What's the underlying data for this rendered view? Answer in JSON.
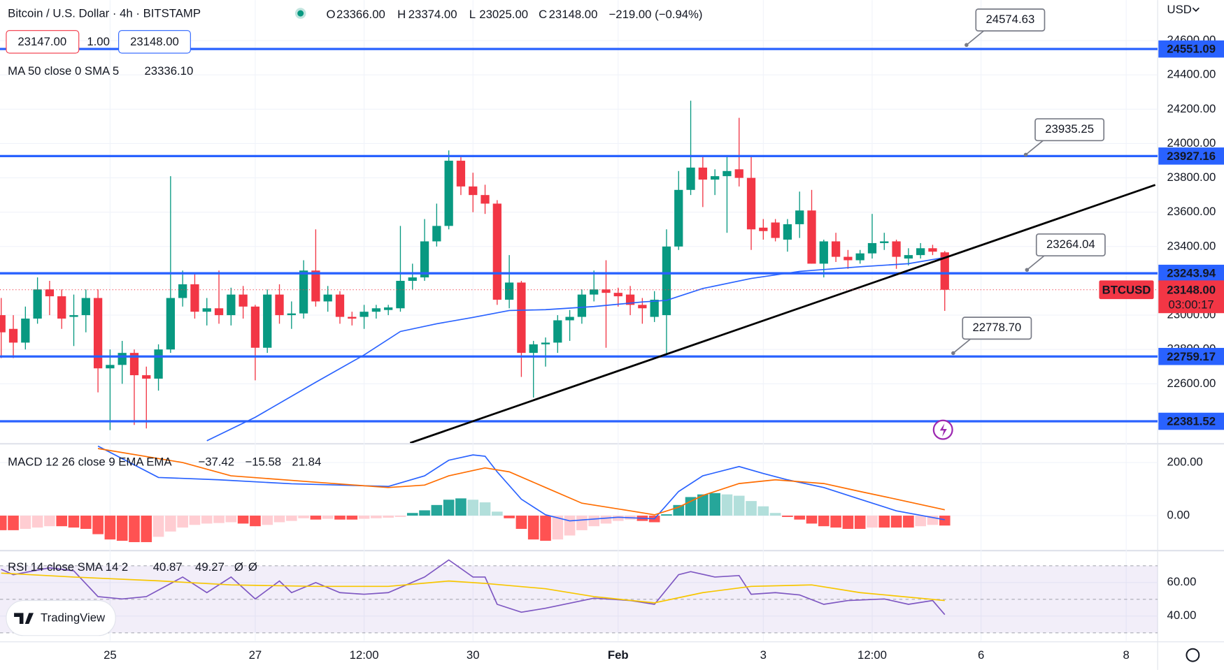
{
  "header": {
    "symbol": "Bitcoin / U.S. Dollar · 4h · BITSTAMP",
    "ohlc": [
      {
        "label": "O",
        "value": "23366.00"
      },
      {
        "label": "H",
        "value": "23374.00"
      },
      {
        "label": "L",
        "value": "23025.00"
      },
      {
        "label": "C",
        "value": "23148.00"
      }
    ],
    "change": "−219.00 (−0.94%)",
    "bid": "23147.00",
    "spread": "1.00",
    "ask": "23148.00",
    "currency": "USD",
    "brand": "TradingView"
  },
  "chart_data": [
    {
      "type": "candlestick",
      "up_color": "#089981",
      "down_color": "#f23645",
      "grid": true,
      "open": [
        23000,
        22920,
        22840,
        22980,
        23150,
        23110,
        22990,
        23000,
        23100,
        22690,
        22710,
        22780,
        22650,
        22630,
        22800,
        23100,
        23180,
        23020,
        23040,
        23000,
        23120,
        23050,
        22810,
        23120,
        23000,
        23010,
        23260,
        23080,
        23120,
        22990,
        22990,
        23020,
        23030,
        23040,
        23200,
        23220,
        23430,
        23520,
        23900,
        23750,
        23700,
        23650,
        23090,
        23190,
        22780,
        22830,
        22840,
        22970,
        22990,
        23120,
        23150,
        23130,
        23120,
        23060,
        22990,
        23000,
        23400,
        23730,
        23860,
        23790,
        23810,
        23850,
        23800,
        23510,
        23540,
        23440,
        23530,
        23610,
        23300,
        23430,
        23340,
        23320,
        23360,
        23420,
        23430,
        23330,
        23350,
        23390,
        23366
      ],
      "high": [
        23100,
        23000,
        23050,
        23220,
        23200,
        23150,
        23120,
        23150,
        23150,
        22800,
        22850,
        22800,
        22700,
        22830,
        23810,
        23260,
        23250,
        23100,
        23260,
        23160,
        23170,
        23060,
        23150,
        23180,
        23080,
        23320,
        23500,
        23170,
        23140,
        23020,
        23060,
        23060,
        23060,
        23520,
        23300,
        23560,
        23650,
        23960,
        23920,
        23830,
        23760,
        23670,
        23350,
        23200,
        22850,
        22870,
        23000,
        23030,
        23150,
        23260,
        23320,
        23160,
        23170,
        23100,
        23140,
        23500,
        23840,
        24250,
        23930,
        23850,
        23930,
        24150,
        23930,
        23560,
        23560,
        23560,
        23720,
        23730,
        23440,
        23480,
        23380,
        23380,
        23590,
        23480,
        23440,
        23390,
        23420,
        23410,
        23374
      ],
      "low": [
        22750,
        22750,
        22800,
        22950,
        23000,
        22920,
        22820,
        22900,
        22550,
        22330,
        22600,
        22360,
        22340,
        22560,
        22780,
        23050,
        22980,
        22940,
        22950,
        22940,
        22980,
        22620,
        22780,
        22950,
        22920,
        22980,
        23050,
        23020,
        22950,
        22940,
        22920,
        22980,
        23000,
        23020,
        23150,
        23200,
        23400,
        23500,
        23700,
        23600,
        23590,
        23060,
        23040,
        22640,
        22520,
        22700,
        22780,
        22850,
        22950,
        23080,
        22810,
        23050,
        23000,
        22950,
        22960,
        22770,
        23380,
        23700,
        23630,
        23700,
        23480,
        23750,
        23380,
        23440,
        23430,
        23370,
        23450,
        23300,
        23220,
        23310,
        23270,
        23300,
        23330,
        23380,
        23270,
        23290,
        23330,
        23350,
        23025
      ],
      "close": [
        22900,
        22840,
        22980,
        23150,
        23110,
        22980,
        23000,
        23100,
        22690,
        22710,
        22780,
        22650,
        22630,
        22800,
        23100,
        23180,
        23020,
        23040,
        23000,
        23120,
        23050,
        22810,
        23120,
        23000,
        23010,
        23260,
        23080,
        23120,
        22990,
        22980,
        23020,
        23040,
        23045,
        23200,
        23220,
        23430,
        23520,
        23900,
        23750,
        23700,
        23650,
        23090,
        23190,
        22780,
        22830,
        22840,
        22970,
        22990,
        23120,
        23150,
        23130,
        23110,
        23060,
        23040,
        23090,
        23400,
        23730,
        23860,
        23790,
        23810,
        23840,
        23800,
        23500,
        23490,
        23450,
        23530,
        23610,
        23300,
        23430,
        23340,
        23320,
        23360,
        23420,
        23430,
        23340,
        23350,
        23390,
        23370,
        23148
      ],
      "xlim": [
        -0.1,
        95.6
      ],
      "ylim": [
        22255,
        24836
      ],
      "xticks": [
        {
          "value": 9,
          "label": "25"
        },
        {
          "value": 21,
          "label": "27"
        },
        {
          "value": 30,
          "label": "12:00"
        },
        {
          "value": 39,
          "label": "30"
        },
        {
          "value": 51,
          "label": "Feb"
        },
        {
          "value": 63,
          "label": "3"
        },
        {
          "value": 72,
          "label": "12:00"
        },
        {
          "value": 81,
          "label": "6"
        },
        {
          "value": 93,
          "label": "8"
        }
      ],
      "yticks": [
        {
          "value": 24600,
          "label": "24600.00"
        },
        {
          "value": 24400,
          "label": "24400.00"
        },
        {
          "value": 24200,
          "label": "24200.00"
        },
        {
          "value": 24000,
          "label": "24000.00"
        },
        {
          "value": 23800,
          "label": "23800.00"
        },
        {
          "value": 23600,
          "label": "23600.00"
        },
        {
          "value": 23400,
          "label": "23400.00"
        },
        {
          "value": 23000,
          "label": "23000.00"
        },
        {
          "value": 22800,
          "label": "22800.00"
        },
        {
          "value": 22600,
          "label": "22600.00"
        }
      ],
      "series": [
        {
          "name": "MA 50 close 0 SMA 5",
          "color": "#2962ff",
          "value_label": "23336.10",
          "x": [
            17,
            21,
            26,
            30,
            33,
            36,
            39,
            42,
            45,
            49,
            53,
            55,
            58,
            62,
            66,
            71,
            75,
            78
          ],
          "values": [
            22268,
            22405,
            22609,
            22768,
            22905,
            22950,
            22987,
            23027,
            23032,
            23050,
            23077,
            23086,
            23155,
            23214,
            23255,
            23282,
            23300,
            23336.1
          ]
        }
      ],
      "level_color": "#2962ff",
      "levels": [
        {
          "value": 24551.09,
          "label": "24551.09"
        },
        {
          "value": 23927.16,
          "label": "23927.16"
        },
        {
          "value": 23243.94,
          "label": "23243.94"
        },
        {
          "value": 22759.17,
          "label": "22759.17"
        },
        {
          "value": 22381.52,
          "label": "22381.52"
        }
      ],
      "callouts": [
        {
          "x": 79.8,
          "value": 24574.63,
          "label": "24574.63"
        },
        {
          "x": 84.7,
          "value": 23935.25,
          "label": "23935.25"
        },
        {
          "x": 84.8,
          "value": 23264.04,
          "label": "23264.04"
        },
        {
          "x": 78.7,
          "value": 22778.7,
          "label": "22778.70"
        }
      ],
      "trendline": {
        "x": [
          33.8,
          95.4
        ],
        "values": [
          22255,
          23759
        ]
      },
      "last_price": {
        "value": 23148,
        "label": "23148.00",
        "symbol": "BTCUSD",
        "countdown": "03:00:17"
      }
    },
    {
      "type": "macd",
      "title": "MACD 12 26 close 9 EMA EMA",
      "ylim": [
        -129,
        268
      ],
      "yticks": [
        {
          "value": 200,
          "label": "200.00"
        },
        {
          "value": 0,
          "label": "0.00"
        }
      ],
      "hist_colors": [
        "#26a69a",
        "#b2dfdb",
        "#ff5252",
        "#ffcdd2"
      ],
      "histogram": {
        "value_label": "−37.42",
        "color": "#f23645",
        "values": [
          -55,
          -55,
          -50,
          -45,
          -40,
          -40,
          -45,
          -50,
          -70,
          -90,
          -95,
          -100,
          -100,
          -80,
          -60,
          -45,
          -35,
          -30,
          -28,
          -25,
          -30,
          -40,
          -35,
          -25,
          -20,
          -10,
          -15,
          -12,
          -15,
          -15,
          -12,
          -10,
          -8,
          -5,
          10,
          20,
          40,
          60,
          65,
          60,
          50,
          15,
          -10,
          -50,
          -90,
          -95,
          -90,
          -75,
          -55,
          -40,
          -30,
          -20,
          -15,
          -20,
          -25,
          5,
          40,
          70,
          80,
          85,
          80,
          75,
          55,
          35,
          10,
          -5,
          -15,
          -30,
          -40,
          -45,
          -50,
          -50,
          -45,
          -45,
          -45,
          -45,
          -40,
          -35,
          -37.42
        ]
      },
      "series": [
        {
          "color": "#2962ff",
          "value_label": "−15.58",
          "x": [
            8,
            13,
            18,
            24,
            32,
            35,
            37,
            39,
            40,
            41,
            43,
            45,
            47,
            51,
            54,
            56,
            58,
            61,
            63,
            65,
            68,
            71,
            74,
            78
          ],
          "values": [
            262,
            144,
            135,
            120,
            110,
            150,
            209,
            229,
            224,
            165,
            62,
            3,
            -20,
            -6,
            -12,
            91,
            150,
            185,
            159,
            135,
            106,
            62,
            18,
            -15.58
          ]
        },
        {
          "color": "#ff6d00",
          "value_label": "21.84",
          "x": [
            8,
            15,
            19,
            26,
            32,
            35,
            37,
            40,
            42,
            45,
            48,
            52,
            54,
            56,
            58,
            61,
            64,
            68,
            71,
            74,
            78
          ],
          "values": [
            253,
            200,
            150,
            126,
            106,
            115,
            150,
            180,
            165,
            106,
            47,
            18,
            3,
            32,
            76,
            121,
            135,
            121,
            91,
            62,
            21.84
          ]
        }
      ]
    },
    {
      "type": "rsi",
      "title": "RSI 14 close SMA 14 2",
      "extras": [
        "Ø",
        "Ø"
      ],
      "ylim": [
        25.1,
        78.6
      ],
      "yticks": [
        {
          "value": 60,
          "label": "60.00"
        },
        {
          "value": 40,
          "label": "40.00"
        }
      ],
      "band": [
        30,
        70
      ],
      "midline": 50,
      "band_color": "#7e57c2",
      "series": [
        {
          "color": "#7e57c2",
          "value_label": "40.87",
          "x": [
            0,
            1,
            4,
            6,
            8,
            10,
            12,
            15,
            17,
            19,
            21,
            23,
            24,
            26,
            28,
            30,
            32,
            35,
            37,
            39,
            40,
            41,
            43,
            45,
            49,
            52,
            54,
            56,
            57,
            59,
            61,
            62,
            64,
            66,
            68,
            70,
            73,
            75,
            77,
            78
          ],
          "values": [
            67.9,
            64.7,
            68.8,
            67.0,
            51.6,
            50.2,
            51.6,
            63.3,
            54.0,
            63.3,
            50.2,
            60.9,
            54.0,
            60.0,
            54.0,
            53.0,
            54.0,
            63.3,
            73.5,
            63.3,
            63.3,
            47.0,
            42.3,
            44.7,
            50.7,
            49.3,
            47.0,
            64.7,
            66.5,
            63.3,
            64.2,
            53.0,
            54.0,
            52.6,
            47.0,
            49.3,
            50.2,
            47.0,
            49.3,
            40.87
          ]
        },
        {
          "color": "#f7c600",
          "value_label": "49.27",
          "x": [
            0,
            6,
            13,
            19,
            26,
            32,
            37,
            40,
            45,
            49,
            54,
            58,
            62,
            67,
            71,
            78
          ],
          "values": [
            65.6,
            63.3,
            61.0,
            58.6,
            57.7,
            57.7,
            60.9,
            59.5,
            56.3,
            51.6,
            47.9,
            54.0,
            57.7,
            58.6,
            54.0,
            49.27
          ]
        }
      ]
    }
  ]
}
